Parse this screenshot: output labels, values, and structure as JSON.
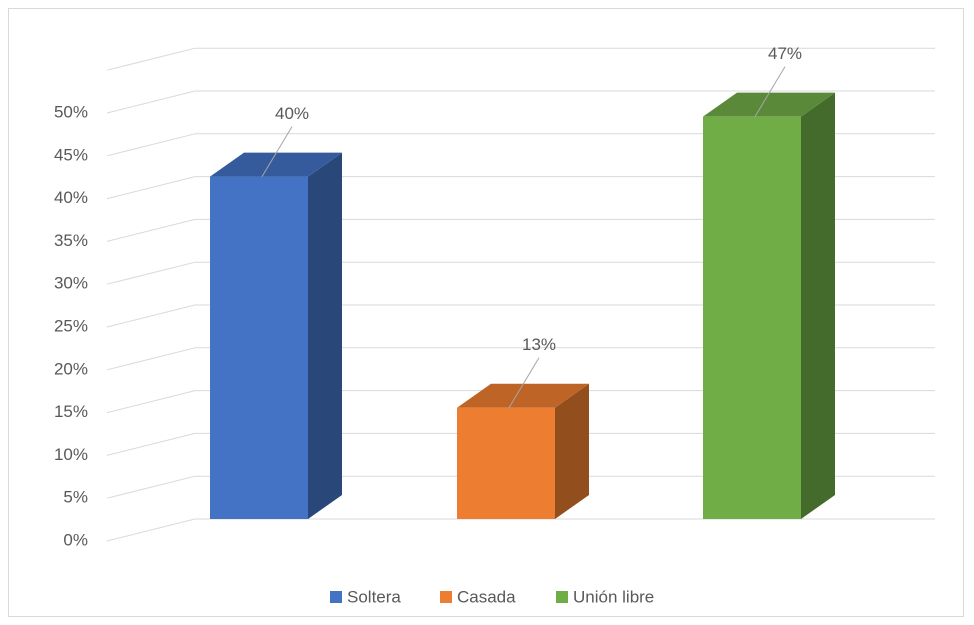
{
  "chart_data": {
    "type": "bar3d",
    "series": [
      {
        "name": "Soltera",
        "color": "#4472c4",
        "values": [
          40
        ],
        "value_labels": [
          "40%"
        ]
      },
      {
        "name": "Casada",
        "color": "#ed7d31",
        "values": [
          13
        ],
        "value_labels": [
          "13%"
        ]
      },
      {
        "name": "Unión libre",
        "color": "#70ad47",
        "values": [
          47
        ],
        "value_labels": [
          "47%"
        ]
      }
    ],
    "ylim": [
      0,
      55
    ],
    "yticks": [
      {
        "value": 0,
        "label": "0%"
      },
      {
        "value": 5,
        "label": "5%"
      },
      {
        "value": 10,
        "label": "10%"
      },
      {
        "value": 15,
        "label": "15%"
      },
      {
        "value": 20,
        "label": "20%"
      },
      {
        "value": 25,
        "label": "25%"
      },
      {
        "value": 30,
        "label": "30%"
      },
      {
        "value": 35,
        "label": "35%"
      },
      {
        "value": 40,
        "label": "40%"
      },
      {
        "value": 45,
        "label": "45%"
      },
      {
        "value": 50,
        "label": "50%"
      }
    ],
    "grid": true,
    "legend": "bottom"
  }
}
